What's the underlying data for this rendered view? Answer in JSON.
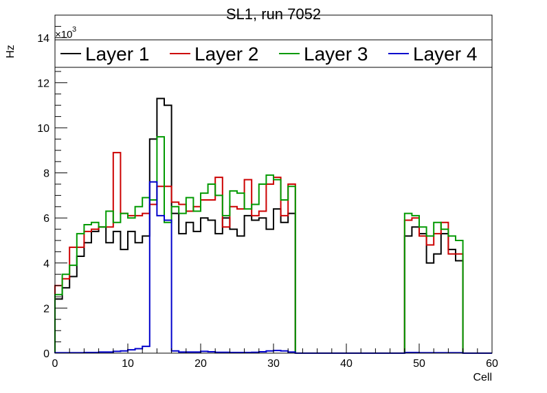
{
  "chart_data": {
    "type": "step-histogram",
    "title": "SL1, run 7052",
    "xlabel": "Cell",
    "ylabel": "Hz",
    "y_multiplier": "×10",
    "y_multiplier_exp": "3",
    "xlim": [
      0,
      60
    ],
    "ylim": [
      0,
      15
    ],
    "x_ticks": [
      0,
      10,
      20,
      30,
      40,
      50,
      60
    ],
    "y_ticks": [
      0,
      2,
      4,
      6,
      8,
      10,
      12,
      14
    ],
    "legend_position": "top",
    "bin_width": 1,
    "series": [
      {
        "name": "Layer 1",
        "color": "#000000",
        "values": [
          2.4,
          2.9,
          3.4,
          4.3,
          4.9,
          5.4,
          5.6,
          4.9,
          5.4,
          4.6,
          5.4,
          4.9,
          5.2,
          9.5,
          11.3,
          11.0,
          6.2,
          5.3,
          5.8,
          5.4,
          6.0,
          5.9,
          5.3,
          6.0,
          5.5,
          5.2,
          6.1,
          5.9,
          6.0,
          5.5,
          6.4,
          5.8,
          6.2,
          0,
          0,
          0,
          0,
          0,
          0,
          0,
          0,
          0,
          0,
          0,
          0,
          0,
          0,
          0,
          5.2,
          5.6,
          5.3,
          4.0,
          4.4,
          5.3,
          4.6,
          4.1,
          0,
          0,
          0,
          0
        ]
      },
      {
        "name": "Layer 2",
        "color": "#cc0000",
        "values": [
          3.0,
          3.3,
          4.7,
          4.7,
          5.4,
          5.5,
          5.6,
          5.6,
          8.9,
          6.2,
          6.1,
          6.1,
          6.2,
          6.6,
          7.4,
          7.4,
          6.7,
          6.6,
          6.3,
          6.5,
          6.8,
          6.8,
          7.8,
          5.6,
          6.5,
          6.4,
          7.7,
          6.1,
          6.3,
          7.5,
          7.8,
          6.1,
          7.5,
          0,
          0,
          0,
          0,
          0,
          0,
          0,
          0,
          0,
          0,
          0,
          0,
          0,
          0,
          0,
          5.9,
          6.0,
          5.2,
          4.8,
          5.3,
          5.8,
          4.4,
          4.4,
          0,
          0,
          0,
          0
        ]
      },
      {
        "name": "Layer 3",
        "color": "#009900",
        "values": [
          2.6,
          3.5,
          3.9,
          5.3,
          5.7,
          5.8,
          5.6,
          6.3,
          5.8,
          6.2,
          6.0,
          6.5,
          6.9,
          6.8,
          9.6,
          5.8,
          6.5,
          6.2,
          6.9,
          6.3,
          7.1,
          7.5,
          7.0,
          6.1,
          7.2,
          7.1,
          6.4,
          6.6,
          7.5,
          7.9,
          7.7,
          6.8,
          7.4,
          0,
          0,
          0,
          0,
          0,
          0,
          0,
          0,
          0,
          0,
          0,
          0,
          0,
          0,
          0,
          6.2,
          6.1,
          5.6,
          5.2,
          5.8,
          5.5,
          5.2,
          5.0,
          0,
          0,
          0,
          0
        ]
      },
      {
        "name": "Layer 4",
        "color": "#0000cc",
        "values": [
          0.02,
          0.02,
          0.02,
          0.02,
          0.03,
          0.03,
          0.05,
          0.05,
          0.08,
          0.1,
          0.15,
          0.2,
          0.3,
          7.6,
          6.1,
          5.9,
          0.1,
          0.05,
          0.05,
          0.05,
          0.08,
          0.06,
          0.04,
          0.04,
          0.03,
          0.03,
          0.03,
          0.04,
          0.06,
          0.1,
          0.12,
          0.1,
          0.05,
          0,
          0,
          0,
          0,
          0,
          0,
          0,
          0,
          0,
          0,
          0,
          0,
          0,
          0,
          0,
          0.03,
          0.03,
          0.02,
          0.02,
          0.02,
          0.02,
          0.02,
          0.02,
          0,
          0,
          0,
          0
        ]
      }
    ]
  }
}
